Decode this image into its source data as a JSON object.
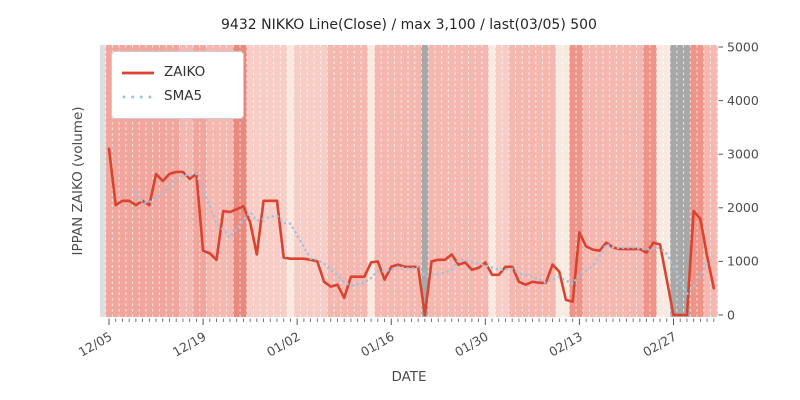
{
  "title": "9432 NIKKO Line(Close) / max 3,100 / last(03/05) 500",
  "axes": {
    "xlabel": "DATE",
    "ylabel": "IPPAN ZAIKO (volume)",
    "y_tick_labels": [
      "0",
      "1000",
      "2000",
      "3000",
      "4000",
      "5000"
    ],
    "y_tick_values": [
      0,
      1000,
      2000,
      3000,
      4000,
      5000
    ],
    "x_major_tick_labels": [
      "12/05",
      "12/19",
      "01/02",
      "01/16",
      "01/30",
      "02/13",
      "02/27"
    ],
    "x_major_tick_indices": [
      0,
      14,
      28,
      42,
      56,
      70,
      84
    ]
  },
  "legend": {
    "items": [
      {
        "label": "ZAIKO",
        "color": "#d9432f",
        "style": "solid"
      },
      {
        "label": "SMA5",
        "color": "#9fc2e0",
        "style": "dotted"
      }
    ]
  },
  "chart_data": {
    "type": "line",
    "title": "9432 NIKKO Line(Close) / max 3,100 / last(03/05) 500",
    "xlabel": "DATE",
    "ylabel": "IPPAN ZAIKO (volume)",
    "x_start_date": "12/05",
    "x_end_date": "03/05",
    "n_points": 91,
    "ylim": [
      0,
      5000
    ],
    "legend_position": "upper-left",
    "annotations": {
      "max_value": 3100,
      "last_value": 500,
      "last_date": "03/05"
    },
    "series": [
      {
        "name": "ZAIKO",
        "style": "solid",
        "color": "#d9432f",
        "values": [
          3100,
          2050,
          2130,
          2130,
          2050,
          2130,
          2050,
          2630,
          2500,
          2630,
          2670,
          2670,
          2540,
          2630,
          1200,
          1150,
          1030,
          1940,
          1920,
          1975,
          2030,
          1730,
          1130,
          2130,
          2130,
          2130,
          1070,
          1050,
          1050,
          1050,
          1030,
          1000,
          620,
          530,
          565,
          320,
          715,
          715,
          715,
          980,
          1000,
          660,
          900,
          940,
          900,
          900,
          900,
          0,
          1000,
          1030,
          1030,
          1130,
          940,
          980,
          845,
          880,
          980,
          750,
          750,
          900,
          900,
          620,
          565,
          620,
          600,
          600,
          940,
          810,
          280,
          250,
          1540,
          1280,
          1220,
          1200,
          1350,
          1260,
          1230,
          1230,
          1230,
          1230,
          1165,
          1350,
          1315,
          660,
          0,
          0,
          0,
          1940,
          1790,
          1100,
          500
        ]
      },
      {
        "name": "SMA5",
        "style": "dotted",
        "color": "#9fc2e0",
        "derived_from": "ZAIKO",
        "window": 5
      }
    ],
    "background": {
      "description": "per-day vertical bands; gray = zero/no-trade days (01/21, 02/27-03/01)",
      "palette": {
        "0": "#f9eae1",
        "1": "#f7cdc6",
        "2": "#f4b8b0",
        "3": "#f1a69d",
        "4": "#ee9489",
        "5": "#ea8a7e",
        "G": "#a8a8a8",
        "edge": "#dedede"
      },
      "day_band_keys": "33333333333223322225511111101111122222202222222G222222222011222222200442222222224400GGG4422"
    },
    "grid": {
      "vertical_day_gridlines": true,
      "gridline_style": "dashed",
      "gridline_color": "rgba(255,255,255,0.75)"
    }
  }
}
